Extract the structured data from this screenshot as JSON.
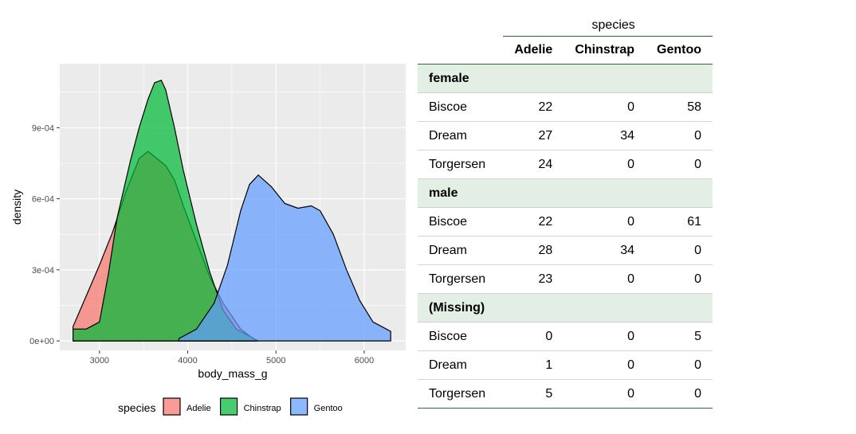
{
  "chart_data": {
    "type": "area",
    "xlabel": "body_mass_g",
    "ylabel": "density",
    "xlim": [
      2550,
      6470
    ],
    "ylim": [
      -4e-05,
      0.00117
    ],
    "x_ticks": [
      3000,
      4000,
      5000,
      6000
    ],
    "x_tick_labels": [
      "3000",
      "4000",
      "5000",
      "6000"
    ],
    "y_ticks": [
      0,
      0.0003,
      0.0006,
      0.0009
    ],
    "y_tick_labels": [
      "0e+00",
      "3e-04",
      "6e-04",
      "9e-04"
    ],
    "grid": true,
    "legend": {
      "title": "species",
      "position": "bottom"
    },
    "series": [
      {
        "name": "Adelie",
        "color": "#f8766d",
        "x": [
          2700,
          2850,
          3000,
          3150,
          3300,
          3450,
          3550,
          3650,
          3750,
          3850,
          3950,
          4100,
          4250,
          4400,
          4600,
          4775
        ],
        "values": [
          6e-05,
          0.00019,
          0.00032,
          0.00046,
          0.00063,
          0.00077,
          0.0008,
          0.00077,
          0.00074,
          0.00068,
          0.00057,
          0.00042,
          0.00027,
          0.00016,
          5e-05,
          0.0
        ]
      },
      {
        "name": "Chinstrap",
        "color": "#00ba38",
        "x": [
          2700,
          2850,
          3000,
          3100,
          3200,
          3350,
          3450,
          3550,
          3625,
          3700,
          3750,
          3850,
          3950,
          4100,
          4250,
          4400,
          4550,
          4700,
          4800
        ],
        "values": [
          5e-05,
          5e-05,
          8e-05,
          0.00028,
          0.00052,
          0.00076,
          0.0009,
          0.00102,
          0.00109,
          0.0011,
          0.00106,
          0.0009,
          0.00072,
          0.00049,
          0.00029,
          0.00013,
          5e-05,
          2e-05,
          0.0
        ]
      },
      {
        "name": "Gentoo",
        "color": "#619cff",
        "x": [
          3900,
          4100,
          4300,
          4450,
          4600,
          4700,
          4800,
          4950,
          5100,
          5250,
          5400,
          5500,
          5650,
          5800,
          5950,
          6100,
          6200,
          6300
        ],
        "values": [
          1e-05,
          5e-05,
          0.00016,
          0.00032,
          0.00055,
          0.00066,
          0.0007,
          0.00065,
          0.00058,
          0.00056,
          0.00057,
          0.00055,
          0.00045,
          0.0003,
          0.00017,
          8e-05,
          6e-05,
          4e-05
        ]
      }
    ]
  },
  "table": {
    "spanner": "species",
    "columns": [
      "",
      "Adelie",
      "Chinstrap",
      "Gentoo"
    ],
    "groups": [
      {
        "label": "female",
        "rows": [
          {
            "island": "Biscoe",
            "values": [
              22,
              0,
              58
            ]
          },
          {
            "island": "Dream",
            "values": [
              27,
              34,
              0
            ]
          },
          {
            "island": "Torgersen",
            "values": [
              24,
              0,
              0
            ]
          }
        ]
      },
      {
        "label": "male",
        "rows": [
          {
            "island": "Biscoe",
            "values": [
              22,
              0,
              61
            ]
          },
          {
            "island": "Dream",
            "values": [
              28,
              34,
              0
            ]
          },
          {
            "island": "Torgersen",
            "values": [
              23,
              0,
              0
            ]
          }
        ]
      },
      {
        "label": "(Missing)",
        "rows": [
          {
            "island": "Biscoe",
            "values": [
              0,
              0,
              5
            ]
          },
          {
            "island": "Dream",
            "values": [
              1,
              0,
              0
            ]
          },
          {
            "island": "Torgersen",
            "values": [
              5,
              0,
              0
            ]
          }
        ]
      }
    ]
  }
}
